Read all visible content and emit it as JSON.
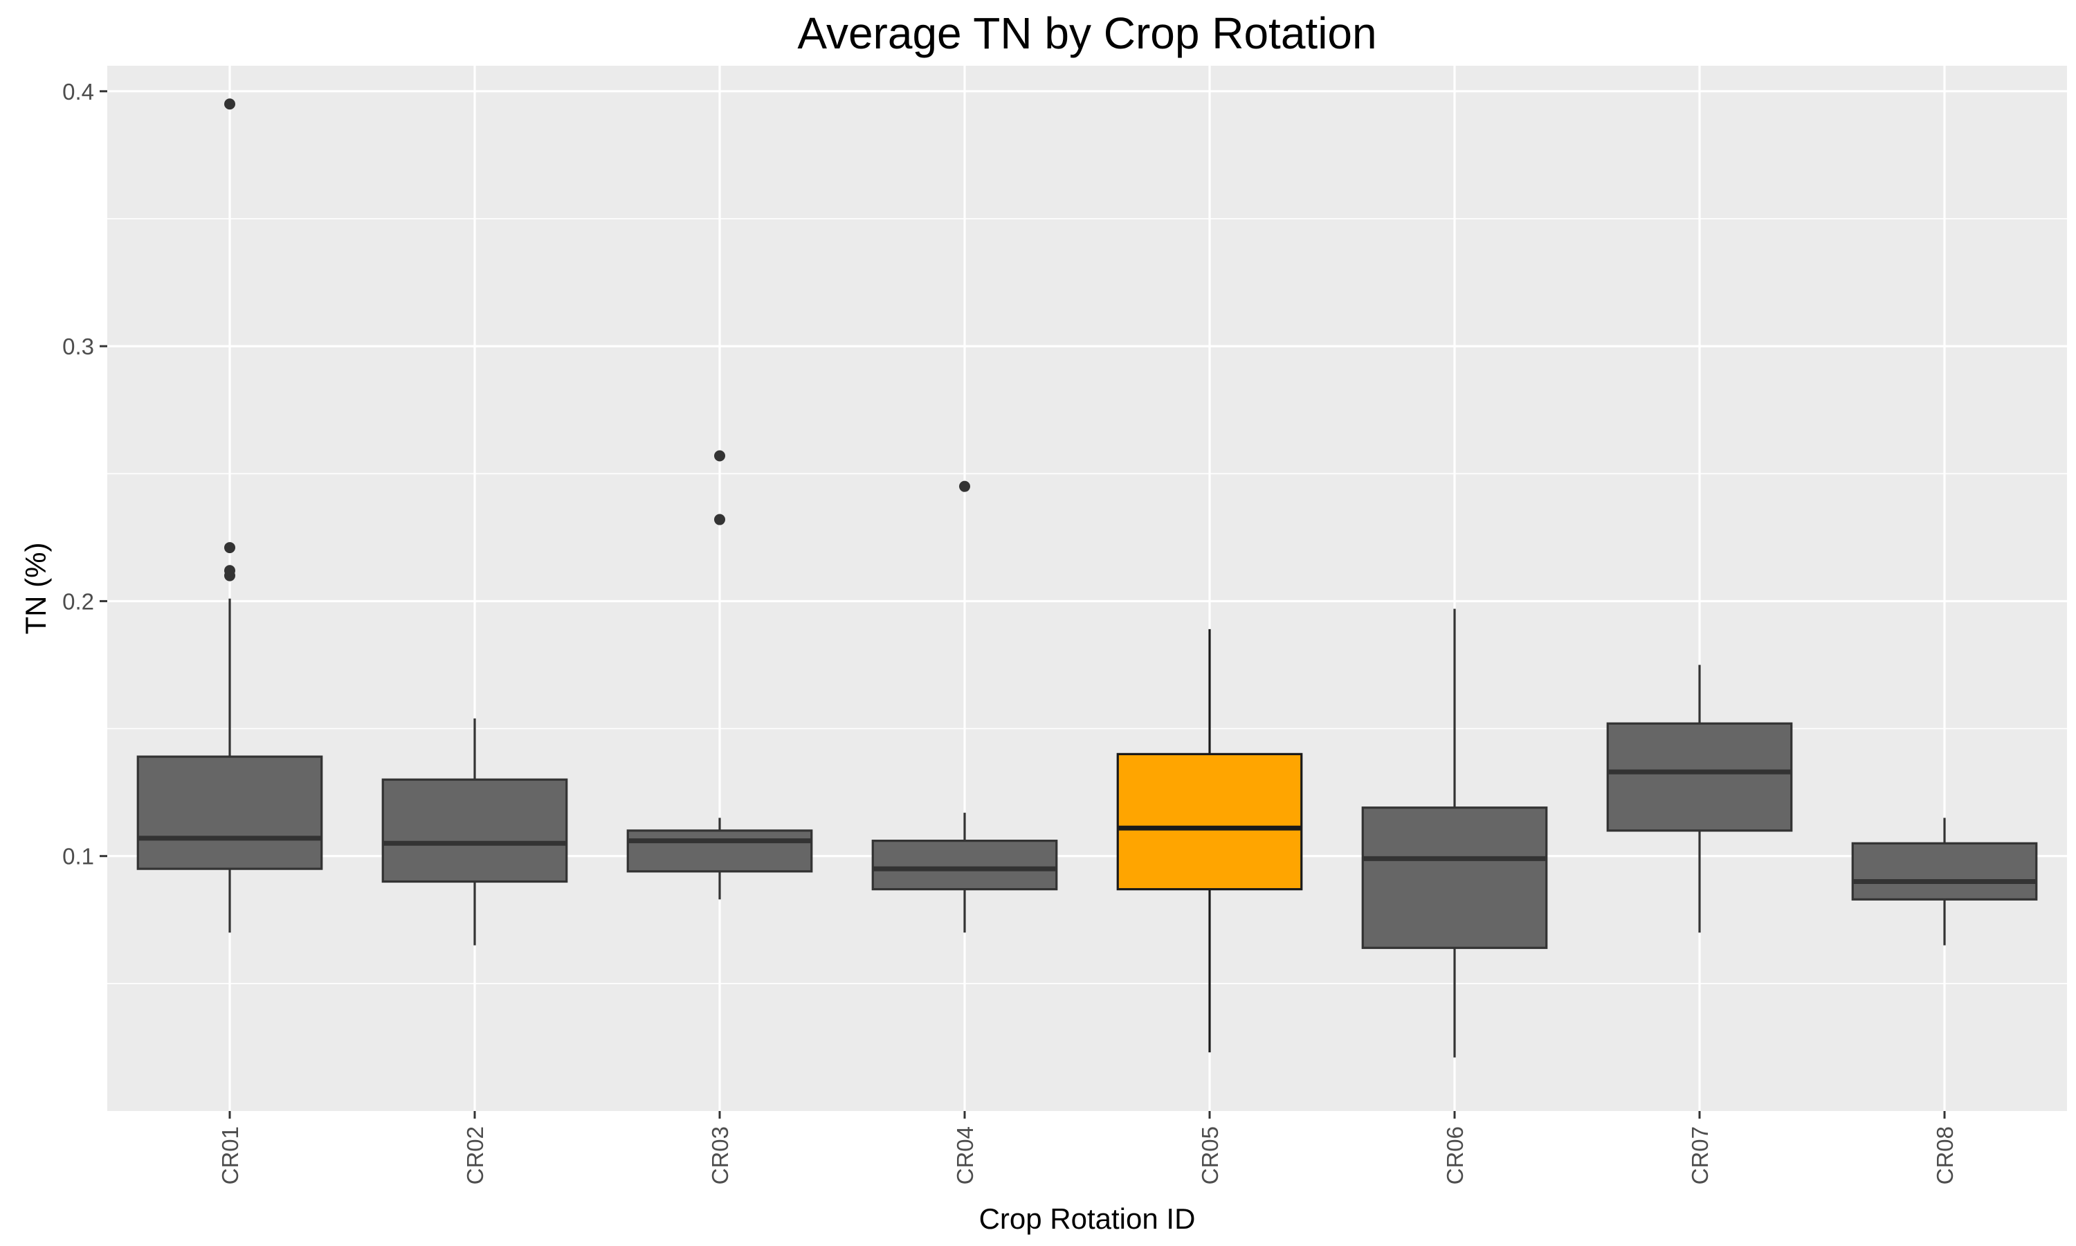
{
  "chart_data": {
    "type": "box",
    "title": "Average TN by Crop Rotation",
    "xlabel": "Crop Rotation ID",
    "ylabel": "TN (%)",
    "ylim": [
      0.0,
      0.41
    ],
    "yticks": [
      0.1,
      0.2,
      0.3,
      0.4
    ],
    "yticks_labels": [
      "0.1",
      "0.2",
      "0.3",
      "0.4"
    ],
    "grid": true,
    "legend": "none",
    "colors": {
      "panel_background": "#ebebeb",
      "grid": "#ffffff",
      "box_fill": "#666666",
      "highlight_fill": "#ffa500",
      "stroke": "#333333"
    },
    "categories": [
      "CR01",
      "CR02",
      "CR03",
      "CR04",
      "CR05",
      "CR06",
      "CR07",
      "CR08"
    ],
    "boxes": [
      {
        "category": "CR01",
        "whisker_low": 0.07,
        "q1": 0.095,
        "median": 0.107,
        "q3": 0.139,
        "whisker_high": 0.201,
        "outliers": [
          0.21,
          0.212,
          0.221,
          0.395
        ],
        "highlight": false
      },
      {
        "category": "CR02",
        "whisker_low": 0.065,
        "q1": 0.09,
        "median": 0.105,
        "q3": 0.13,
        "whisker_high": 0.154,
        "outliers": [],
        "highlight": false
      },
      {
        "category": "CR03",
        "whisker_low": 0.083,
        "q1": 0.094,
        "median": 0.106,
        "q3": 0.11,
        "whisker_high": 0.115,
        "outliers": [
          0.232,
          0.257
        ],
        "highlight": false
      },
      {
        "category": "CR04",
        "whisker_low": 0.07,
        "q1": 0.087,
        "median": 0.095,
        "q3": 0.106,
        "whisker_high": 0.117,
        "outliers": [
          0.245
        ],
        "highlight": false
      },
      {
        "category": "CR05",
        "whisker_low": 0.023,
        "q1": 0.087,
        "median": 0.111,
        "q3": 0.14,
        "whisker_high": 0.189,
        "outliers": [],
        "highlight": true
      },
      {
        "category": "CR06",
        "whisker_low": 0.021,
        "q1": 0.064,
        "median": 0.099,
        "q3": 0.119,
        "whisker_high": 0.197,
        "outliers": [],
        "highlight": false
      },
      {
        "category": "CR07",
        "whisker_low": 0.07,
        "q1": 0.11,
        "median": 0.133,
        "q3": 0.152,
        "whisker_high": 0.175,
        "outliers": [],
        "highlight": false
      },
      {
        "category": "CR08",
        "whisker_low": 0.065,
        "q1": 0.083,
        "median": 0.09,
        "q3": 0.105,
        "whisker_high": 0.115,
        "outliers": [],
        "highlight": false
      }
    ]
  }
}
